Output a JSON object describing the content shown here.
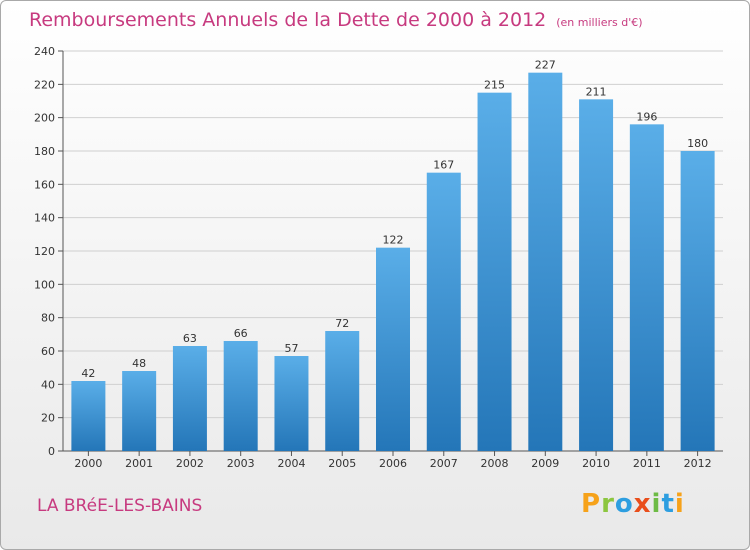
{
  "header": {
    "title": "Remboursements Annuels de la Dette de 2000 à 2012",
    "unit": "(en milliers d'€)"
  },
  "footer": {
    "town": "LA BRéE-LES-BAINS",
    "logo": "Proxiti"
  },
  "colors": {
    "title": "#c73a7f",
    "bar_top": "#5aaee8",
    "bar_bottom": "#2476b8"
  },
  "chart_data": {
    "type": "bar",
    "title": "Remboursements Annuels de la Dette de 2000 à 2012",
    "ylabel": "(en milliers d'€)",
    "xlabel": "",
    "categories": [
      "2000",
      "2001",
      "2002",
      "2003",
      "2004",
      "2005",
      "2006",
      "2007",
      "2008",
      "2009",
      "2010",
      "2011",
      "2012"
    ],
    "values": [
      42,
      48,
      63,
      66,
      57,
      72,
      122,
      167,
      215,
      227,
      211,
      196,
      180
    ],
    "ylim": [
      0,
      240
    ],
    "yticks": [
      0,
      20,
      40,
      60,
      80,
      100,
      120,
      140,
      160,
      180,
      200,
      220,
      240
    ],
    "grid": true,
    "legend": "none",
    "data_labels": true
  }
}
